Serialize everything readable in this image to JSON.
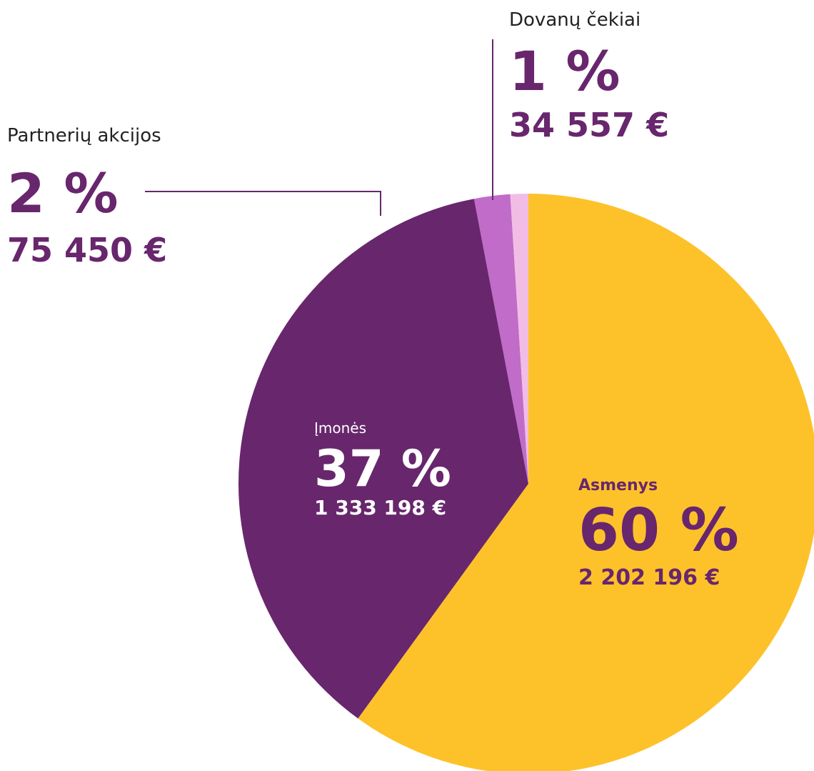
{
  "chart_data": {
    "type": "pie",
    "categories": [
      "Asmenys",
      "Įmonės",
      "Partnerių akcijos",
      "Dovanų čekiai"
    ],
    "values": [
      60,
      37,
      2,
      1
    ],
    "value_labels": [
      "60 %",
      "37 %",
      "2 %",
      "1 %"
    ],
    "amounts": [
      2202196,
      1333198,
      75450,
      34557
    ],
    "amount_labels": [
      "2 202 196 €",
      "1 333 198 €",
      "75 450 €",
      "34 557 €"
    ],
    "colors": [
      "#fdc22a",
      "#68266d",
      "#c06cc8",
      "#f2bde5"
    ]
  }
}
